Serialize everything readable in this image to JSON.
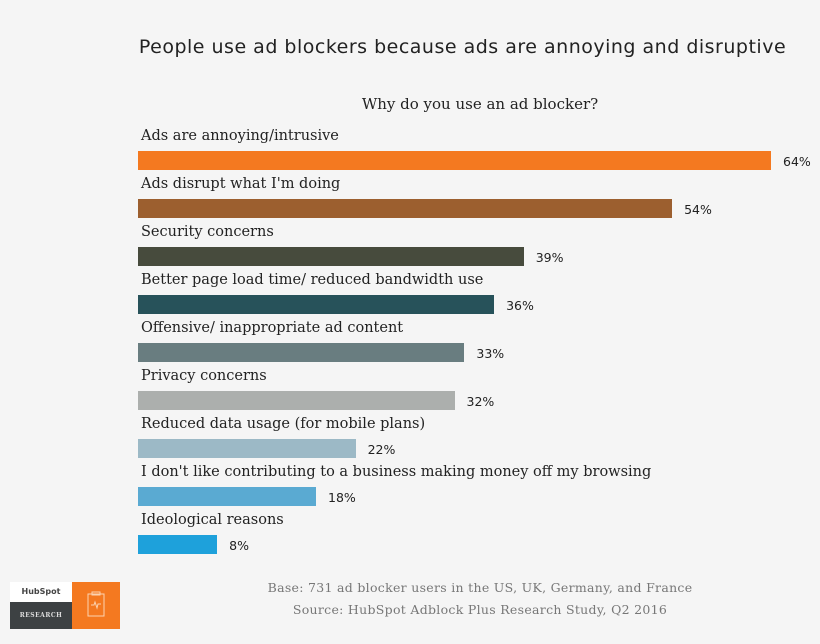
{
  "chart_data": {
    "type": "bar",
    "orientation": "horizontal",
    "title": "People use ad blockers because ads are annoying and disruptive",
    "subtitle": "Why do you use an ad blocker?",
    "categories": [
      "Ads are annoying/intrusive",
      "Ads disrupt what I'm doing",
      "Security concerns",
      "Better page load time/ reduced bandwidth use",
      "Offensive/ inappropriate ad content",
      "Privacy concerns",
      "Reduced data usage (for mobile plans)",
      "I don't like contributing to a business making money off my browsing",
      "Ideological reasons"
    ],
    "values": [
      64,
      54,
      39,
      36,
      33,
      32,
      22,
      18,
      8
    ],
    "value_labels": [
      "64%",
      "54%",
      "39%",
      "36%",
      "33%",
      "32%",
      "22%",
      "18%",
      "8%"
    ],
    "colors": [
      "#f47920",
      "#9c5f2f",
      "#474b3d",
      "#27525a",
      "#697d80",
      "#acafad",
      "#9cb9c6",
      "#5aaad2",
      "#1ea1db"
    ],
    "xlim": [
      0,
      64
    ],
    "grid": false
  },
  "footer": {
    "base": "Base: 731 ad blocker users in the US, UK, Germany, and France",
    "source": "Source: HubSpot Adblock Plus Research Study, Q2 2016"
  },
  "logo": {
    "brand": "HubSpot",
    "label": "RESEARCH",
    "icon": "clipboard-pulse-icon"
  }
}
